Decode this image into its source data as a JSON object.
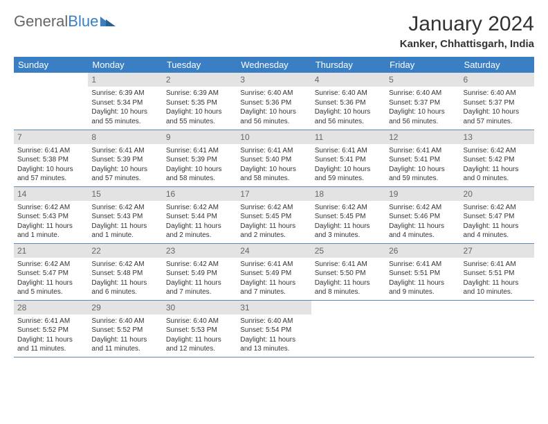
{
  "logo": {
    "part1": "General",
    "part2": "Blue"
  },
  "title": "January 2024",
  "subtitle": "Kanker, Chhattisgarh, India",
  "colors": {
    "header_bg": "#3a7fc4",
    "daynum_bg": "#e3e3e3",
    "border": "#5a88b8"
  },
  "dayNames": [
    "Sunday",
    "Monday",
    "Tuesday",
    "Wednesday",
    "Thursday",
    "Friday",
    "Saturday"
  ],
  "weeks": [
    [
      {
        "n": "",
        "sr": "",
        "ss": "",
        "dl": ""
      },
      {
        "n": "1",
        "sr": "Sunrise: 6:39 AM",
        "ss": "Sunset: 5:34 PM",
        "dl": "Daylight: 10 hours and 55 minutes."
      },
      {
        "n": "2",
        "sr": "Sunrise: 6:39 AM",
        "ss": "Sunset: 5:35 PM",
        "dl": "Daylight: 10 hours and 55 minutes."
      },
      {
        "n": "3",
        "sr": "Sunrise: 6:40 AM",
        "ss": "Sunset: 5:36 PM",
        "dl": "Daylight: 10 hours and 56 minutes."
      },
      {
        "n": "4",
        "sr": "Sunrise: 6:40 AM",
        "ss": "Sunset: 5:36 PM",
        "dl": "Daylight: 10 hours and 56 minutes."
      },
      {
        "n": "5",
        "sr": "Sunrise: 6:40 AM",
        "ss": "Sunset: 5:37 PM",
        "dl": "Daylight: 10 hours and 56 minutes."
      },
      {
        "n": "6",
        "sr": "Sunrise: 6:40 AM",
        "ss": "Sunset: 5:37 PM",
        "dl": "Daylight: 10 hours and 57 minutes."
      }
    ],
    [
      {
        "n": "7",
        "sr": "Sunrise: 6:41 AM",
        "ss": "Sunset: 5:38 PM",
        "dl": "Daylight: 10 hours and 57 minutes."
      },
      {
        "n": "8",
        "sr": "Sunrise: 6:41 AM",
        "ss": "Sunset: 5:39 PM",
        "dl": "Daylight: 10 hours and 57 minutes."
      },
      {
        "n": "9",
        "sr": "Sunrise: 6:41 AM",
        "ss": "Sunset: 5:39 PM",
        "dl": "Daylight: 10 hours and 58 minutes."
      },
      {
        "n": "10",
        "sr": "Sunrise: 6:41 AM",
        "ss": "Sunset: 5:40 PM",
        "dl": "Daylight: 10 hours and 58 minutes."
      },
      {
        "n": "11",
        "sr": "Sunrise: 6:41 AM",
        "ss": "Sunset: 5:41 PM",
        "dl": "Daylight: 10 hours and 59 minutes."
      },
      {
        "n": "12",
        "sr": "Sunrise: 6:41 AM",
        "ss": "Sunset: 5:41 PM",
        "dl": "Daylight: 10 hours and 59 minutes."
      },
      {
        "n": "13",
        "sr": "Sunrise: 6:42 AM",
        "ss": "Sunset: 5:42 PM",
        "dl": "Daylight: 11 hours and 0 minutes."
      }
    ],
    [
      {
        "n": "14",
        "sr": "Sunrise: 6:42 AM",
        "ss": "Sunset: 5:43 PM",
        "dl": "Daylight: 11 hours and 1 minute."
      },
      {
        "n": "15",
        "sr": "Sunrise: 6:42 AM",
        "ss": "Sunset: 5:43 PM",
        "dl": "Daylight: 11 hours and 1 minute."
      },
      {
        "n": "16",
        "sr": "Sunrise: 6:42 AM",
        "ss": "Sunset: 5:44 PM",
        "dl": "Daylight: 11 hours and 2 minutes."
      },
      {
        "n": "17",
        "sr": "Sunrise: 6:42 AM",
        "ss": "Sunset: 5:45 PM",
        "dl": "Daylight: 11 hours and 2 minutes."
      },
      {
        "n": "18",
        "sr": "Sunrise: 6:42 AM",
        "ss": "Sunset: 5:45 PM",
        "dl": "Daylight: 11 hours and 3 minutes."
      },
      {
        "n": "19",
        "sr": "Sunrise: 6:42 AM",
        "ss": "Sunset: 5:46 PM",
        "dl": "Daylight: 11 hours and 4 minutes."
      },
      {
        "n": "20",
        "sr": "Sunrise: 6:42 AM",
        "ss": "Sunset: 5:47 PM",
        "dl": "Daylight: 11 hours and 4 minutes."
      }
    ],
    [
      {
        "n": "21",
        "sr": "Sunrise: 6:42 AM",
        "ss": "Sunset: 5:47 PM",
        "dl": "Daylight: 11 hours and 5 minutes."
      },
      {
        "n": "22",
        "sr": "Sunrise: 6:42 AM",
        "ss": "Sunset: 5:48 PM",
        "dl": "Daylight: 11 hours and 6 minutes."
      },
      {
        "n": "23",
        "sr": "Sunrise: 6:42 AM",
        "ss": "Sunset: 5:49 PM",
        "dl": "Daylight: 11 hours and 7 minutes."
      },
      {
        "n": "24",
        "sr": "Sunrise: 6:41 AM",
        "ss": "Sunset: 5:49 PM",
        "dl": "Daylight: 11 hours and 7 minutes."
      },
      {
        "n": "25",
        "sr": "Sunrise: 6:41 AM",
        "ss": "Sunset: 5:50 PM",
        "dl": "Daylight: 11 hours and 8 minutes."
      },
      {
        "n": "26",
        "sr": "Sunrise: 6:41 AM",
        "ss": "Sunset: 5:51 PM",
        "dl": "Daylight: 11 hours and 9 minutes."
      },
      {
        "n": "27",
        "sr": "Sunrise: 6:41 AM",
        "ss": "Sunset: 5:51 PM",
        "dl": "Daylight: 11 hours and 10 minutes."
      }
    ],
    [
      {
        "n": "28",
        "sr": "Sunrise: 6:41 AM",
        "ss": "Sunset: 5:52 PM",
        "dl": "Daylight: 11 hours and 11 minutes."
      },
      {
        "n": "29",
        "sr": "Sunrise: 6:40 AM",
        "ss": "Sunset: 5:52 PM",
        "dl": "Daylight: 11 hours and 11 minutes."
      },
      {
        "n": "30",
        "sr": "Sunrise: 6:40 AM",
        "ss": "Sunset: 5:53 PM",
        "dl": "Daylight: 11 hours and 12 minutes."
      },
      {
        "n": "31",
        "sr": "Sunrise: 6:40 AM",
        "ss": "Sunset: 5:54 PM",
        "dl": "Daylight: 11 hours and 13 minutes."
      },
      {
        "n": "",
        "sr": "",
        "ss": "",
        "dl": ""
      },
      {
        "n": "",
        "sr": "",
        "ss": "",
        "dl": ""
      },
      {
        "n": "",
        "sr": "",
        "ss": "",
        "dl": ""
      }
    ]
  ]
}
